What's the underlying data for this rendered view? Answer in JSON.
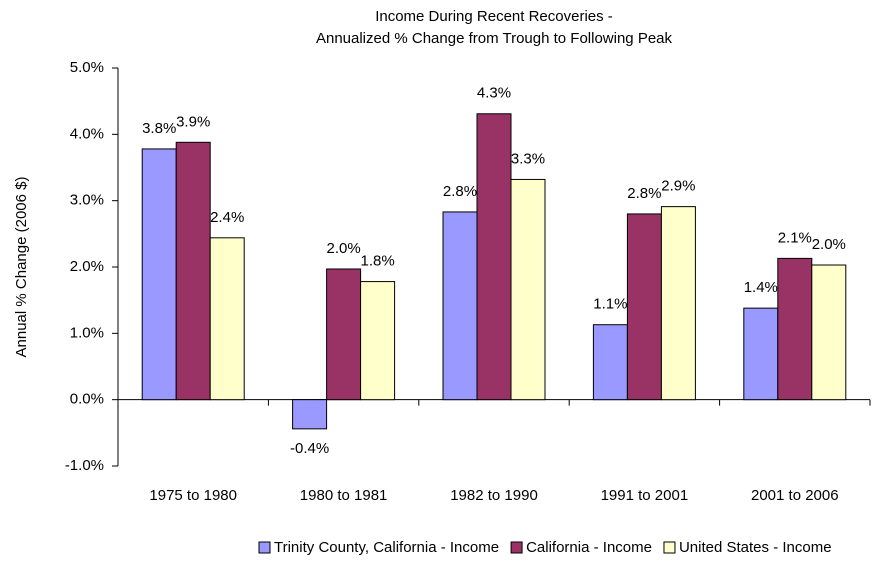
{
  "chart_data": {
    "type": "bar",
    "title": "Income During Recent Recoveries -",
    "subtitle": "Annualized % Change from Trough to Following Peak",
    "y_label": "Annual % Change (2006 $)",
    "categories": [
      "1975 to 1980",
      "1980 to 1981",
      "1982 to 1990",
      "1991 to 2001",
      "2001 to 2006"
    ],
    "series": [
      {
        "name": "Trinity County, California - Income",
        "color": "#9999ff",
        "values": [
          3.78,
          -0.44,
          2.83,
          1.13,
          1.38
        ],
        "value_labels": [
          "3.8%",
          "-0.4%",
          "2.8%",
          "1.1%",
          "1.4%"
        ]
      },
      {
        "name": "California - Income",
        "color": "#993366",
        "values": [
          3.88,
          1.97,
          4.31,
          2.8,
          2.13
        ],
        "value_labels": [
          "3.9%",
          "2.0%",
          "4.3%",
          "2.8%",
          "2.1%"
        ]
      },
      {
        "name": "United States - Income",
        "color": "#ffffcc",
        "values": [
          2.44,
          1.78,
          3.32,
          2.91,
          2.03
        ],
        "value_labels": [
          "2.4%",
          "1.8%",
          "3.3%",
          "2.9%",
          "2.0%"
        ]
      }
    ],
    "ylim": [
      -1,
      5
    ],
    "yticks": [
      {
        "value": -1,
        "label": "-1.0%"
      },
      {
        "value": 0,
        "label": "0.0%"
      },
      {
        "value": 1,
        "label": "1.0%"
      },
      {
        "value": 2,
        "label": "2.0%"
      },
      {
        "value": 3,
        "label": "3.0%"
      },
      {
        "value": 4,
        "label": "4.0%"
      },
      {
        "value": 5,
        "label": "5.0%"
      }
    ],
    "grid": false,
    "legend": "bottom"
  }
}
